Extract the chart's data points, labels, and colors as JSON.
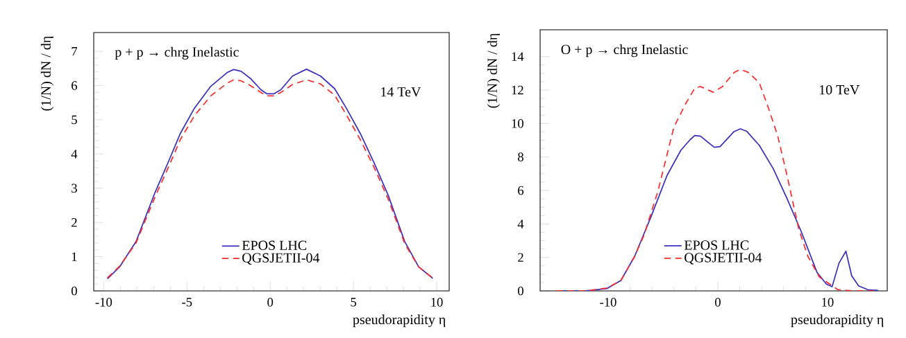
{
  "chart_data": [
    {
      "type": "line",
      "xlabel": "pseudorapidity η",
      "ylabel": "(1/N) dN / dη",
      "annotations": [
        "p + p → chrg  Inelastic",
        "14 TeV"
      ],
      "xlim": [
        -10.6,
        10.75
      ],
      "ylim": [
        0,
        7.55
      ],
      "xticks": [
        -10,
        -5,
        0,
        5,
        10
      ],
      "yticks": [
        0,
        1,
        2,
        3,
        4,
        5,
        6,
        7
      ],
      "legend": "bottom",
      "series": [
        {
          "name": "EPOS LHC",
          "color": "#3a2fc0",
          "line_style": "solid",
          "x": [
            -9.78,
            -9.05,
            -8.06,
            -6.94,
            -6.1,
            -5.4,
            -4.55,
            -3.57,
            -2.59,
            -2.2,
            -1.75,
            -1.19,
            -0.56,
            -0.2,
            0.22,
            0.64,
            1.34,
            2.18,
            3.02,
            3.87,
            4.57,
            5.41,
            6.25,
            7.09,
            8.08,
            8.92,
            9.76
          ],
          "values": [
            0.35,
            0.7,
            1.44,
            2.85,
            3.79,
            4.6,
            5.34,
            5.98,
            6.38,
            6.47,
            6.42,
            6.21,
            5.88,
            5.76,
            5.76,
            5.88,
            6.28,
            6.48,
            6.28,
            5.91,
            5.34,
            4.6,
            3.73,
            2.79,
            1.44,
            0.7,
            0.37
          ]
        },
        {
          "name": "QGSJETII-04",
          "color": "#ff2a2a",
          "line_style": "dashed",
          "x": [
            -9.78,
            -9.05,
            -8.06,
            -6.94,
            -6.1,
            -5.4,
            -4.55,
            -3.57,
            -2.59,
            -2.2,
            -1.75,
            -1.19,
            -0.56,
            -0.2,
            0.22,
            0.64,
            1.34,
            2.18,
            3.02,
            3.87,
            4.57,
            5.41,
            6.25,
            7.09,
            8.08,
            8.92,
            9.76
          ],
          "values": [
            0.38,
            0.72,
            1.4,
            2.72,
            3.63,
            4.42,
            5.12,
            5.7,
            6.07,
            6.17,
            6.14,
            6.0,
            5.8,
            5.7,
            5.7,
            5.8,
            6.03,
            6.17,
            6.05,
            5.72,
            5.15,
            4.42,
            3.6,
            2.68,
            1.38,
            0.7,
            0.38
          ]
        }
      ]
    },
    {
      "type": "line",
      "xlabel": "pseudorapidity η",
      "ylabel": "(1/N) dN / dη",
      "annotations": [
        "O + p → chrg  Inelastic",
        "10 TeV"
      ],
      "xlim": [
        -16.2,
        15.45
      ],
      "ylim": [
        0,
        15.6
      ],
      "xticks": [
        -10,
        0,
        10
      ],
      "yticks": [
        0,
        2,
        4,
        6,
        8,
        10,
        12,
        14
      ],
      "legend": "bottom",
      "series": [
        {
          "name": "EPOS LHC",
          "color": "#3a2fc0",
          "line_style": "solid",
          "x": [
            -14.73,
            -12.0,
            -10.1,
            -8.84,
            -7.58,
            -6.1,
            -4.63,
            -3.36,
            -2.53,
            -2.1,
            -1.58,
            -0.32,
            0.21,
            1.48,
            2.06,
            2.63,
            3.79,
            5.05,
            6.31,
            7.58,
            9.05,
            9.89,
            10.42,
            11.05,
            11.68,
            12.21,
            12.84,
            13.68,
            14.63
          ],
          "values": [
            0,
            0,
            0.14,
            0.62,
            2.07,
            4.41,
            6.9,
            8.41,
            9.03,
            9.28,
            9.24,
            8.58,
            8.62,
            9.52,
            9.68,
            9.54,
            8.69,
            7.31,
            5.52,
            3.59,
            1.1,
            0.41,
            0.25,
            1.66,
            2.37,
            0.9,
            0.3,
            0.07,
            0.03
          ]
        },
        {
          "name": "QGSJETII-04",
          "color": "#ff2a2a",
          "line_style": "dashed",
          "x": [
            -14.73,
            -12.0,
            -10.1,
            -8.84,
            -7.58,
            -6.74,
            -5.47,
            -4.0,
            -2.94,
            -2.1,
            -1.58,
            -0.42,
            0.42,
            1.48,
            2.06,
            2.84,
            3.79,
            4.63,
            5.47,
            6.31,
            7.37,
            8.21,
            9.26,
            10.95,
            12.21,
            14.63
          ],
          "values": [
            0,
            0,
            0.17,
            0.62,
            2.07,
            3.31,
            5.93,
            9.79,
            11.17,
            12.11,
            12.21,
            11.87,
            12.21,
            13.04,
            13.24,
            13.04,
            12.42,
            10.9,
            9.24,
            6.9,
            3.73,
            2.07,
            0.83,
            0.07,
            0,
            0
          ]
        }
      ]
    }
  ]
}
